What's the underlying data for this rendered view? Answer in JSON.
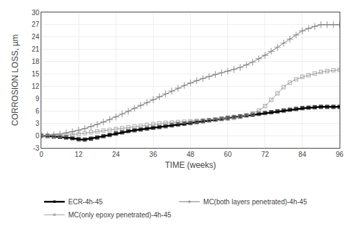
{
  "chart_data": {
    "type": "line",
    "xlabel": "TIME (weeks)",
    "ylabel": "CORROSION LOSS, µm",
    "xlim": [
      0,
      96
    ],
    "ylim": [
      -3,
      30
    ],
    "xticks": [
      0,
      12,
      24,
      36,
      48,
      60,
      72,
      84,
      96
    ],
    "yticks": [
      -3,
      0,
      3,
      6,
      9,
      12,
      15,
      18,
      21,
      24,
      27,
      30
    ],
    "grid": true,
    "legend": "bottom",
    "x": [
      0,
      1,
      2,
      3,
      4,
      5,
      6,
      7,
      8,
      9,
      10,
      11,
      12,
      13,
      14,
      15,
      16,
      17,
      18,
      19,
      20,
      21,
      22,
      23,
      24,
      25,
      26,
      27,
      28,
      29,
      30,
      31,
      32,
      33,
      34,
      35,
      36,
      37,
      38,
      39,
      40,
      41,
      42,
      43,
      44,
      45,
      46,
      47,
      48,
      49,
      50,
      51,
      52,
      53,
      54,
      55,
      56,
      57,
      58,
      59,
      60,
      61,
      62,
      63,
      64,
      65,
      66,
      67,
      68,
      69,
      70,
      71,
      72,
      73,
      74,
      75,
      76,
      77,
      78,
      79,
      80,
      81,
      82,
      83,
      84,
      85,
      86,
      87,
      88,
      89,
      90,
      91,
      92,
      93,
      94,
      95,
      96
    ],
    "series": [
      {
        "name": "ECR-4h-45",
        "color": "#000000",
        "marker": "square",
        "values": [
          0.0,
          -0.05,
          -0.1,
          -0.15,
          -0.2,
          -0.25,
          -0.3,
          -0.35,
          -0.45,
          -0.55,
          -0.65,
          -0.75,
          -0.9,
          -1.0,
          -0.95,
          -0.85,
          -0.75,
          -0.6,
          -0.45,
          -0.3,
          -0.15,
          0.0,
          0.15,
          0.3,
          0.5,
          0.65,
          0.8,
          0.95,
          1.1,
          1.2,
          1.3,
          1.4,
          1.5,
          1.6,
          1.7,
          1.8,
          1.9,
          2.0,
          2.1,
          2.2,
          2.3,
          2.4,
          2.5,
          2.6,
          2.7,
          2.8,
          2.9,
          3.0,
          3.1,
          3.2,
          3.3,
          3.4,
          3.5,
          3.6,
          3.7,
          3.8,
          3.9,
          4.0,
          4.1,
          4.2,
          4.3,
          4.4,
          4.5,
          4.6,
          4.7,
          4.8,
          4.9,
          5.0,
          5.1,
          5.2,
          5.3,
          5.4,
          5.5,
          5.6,
          5.7,
          5.8,
          5.9,
          6.0,
          6.1,
          6.2,
          6.3,
          6.4,
          6.5,
          6.6,
          6.7,
          6.7,
          6.8,
          6.8,
          6.9,
          6.9,
          7.0,
          7.0,
          7.0,
          7.0,
          7.0,
          7.0,
          7.0
        ]
      },
      {
        "name": "MC(both layers penetrated)-4h-45",
        "color": "#777777",
        "marker": "plus",
        "values": [
          0.0,
          0.05,
          0.1,
          0.15,
          0.2,
          0.3,
          0.4,
          0.5,
          0.65,
          0.8,
          0.95,
          1.1,
          1.3,
          1.5,
          1.7,
          1.95,
          2.2,
          2.45,
          2.7,
          3.0,
          3.3,
          3.6,
          3.9,
          4.2,
          4.55,
          4.9,
          5.25,
          5.6,
          5.95,
          6.3,
          6.65,
          7.0,
          7.35,
          7.7,
          8.05,
          8.4,
          8.75,
          9.1,
          9.45,
          9.8,
          10.15,
          10.5,
          10.85,
          11.2,
          11.55,
          11.9,
          12.2,
          12.5,
          12.8,
          13.1,
          13.4,
          13.65,
          13.9,
          14.15,
          14.4,
          14.65,
          14.9,
          15.1,
          15.3,
          15.5,
          15.7,
          15.9,
          16.1,
          16.35,
          16.6,
          16.9,
          17.2,
          17.55,
          17.9,
          18.3,
          18.7,
          19.1,
          19.55,
          20.0,
          20.5,
          21.0,
          21.5,
          22.0,
          22.5,
          23.0,
          23.5,
          24.0,
          24.5,
          25.0,
          25.5,
          25.8,
          26.1,
          26.4,
          26.6,
          26.8,
          27.0,
          27.0,
          27.0,
          27.0,
          27.0,
          27.0,
          27.0
        ]
      },
      {
        "name": "MC(only epoxy penetrated)-4h-45",
        "color": "#999999",
        "marker": "square-open",
        "values": [
          0.0,
          0.0,
          0.0,
          0.0,
          0.0,
          0.0,
          0.0,
          0.05,
          0.1,
          0.15,
          0.2,
          0.3,
          0.4,
          0.5,
          0.6,
          0.7,
          0.8,
          0.9,
          1.0,
          1.1,
          1.2,
          1.3,
          1.4,
          1.5,
          1.6,
          1.7,
          1.8,
          1.9,
          2.0,
          2.1,
          2.2,
          2.3,
          2.4,
          2.5,
          2.6,
          2.7,
          2.8,
          2.9,
          3.0,
          3.05,
          3.1,
          3.15,
          3.2,
          3.25,
          3.3,
          3.35,
          3.4,
          3.45,
          3.5,
          3.55,
          3.6,
          3.65,
          3.7,
          3.75,
          3.8,
          3.85,
          3.9,
          3.95,
          4.0,
          4.05,
          4.1,
          4.2,
          4.3,
          4.4,
          4.55,
          4.7,
          4.9,
          5.1,
          5.4,
          5.7,
          6.1,
          6.6,
          7.2,
          7.9,
          8.7,
          9.5,
          10.3,
          11.1,
          11.8,
          12.4,
          12.9,
          13.3,
          13.7,
          14.0,
          14.3,
          14.5,
          14.7,
          14.9,
          15.1,
          15.3,
          15.5,
          15.6,
          15.7,
          15.8,
          15.9,
          16.0,
          16.0
        ]
      }
    ]
  }
}
